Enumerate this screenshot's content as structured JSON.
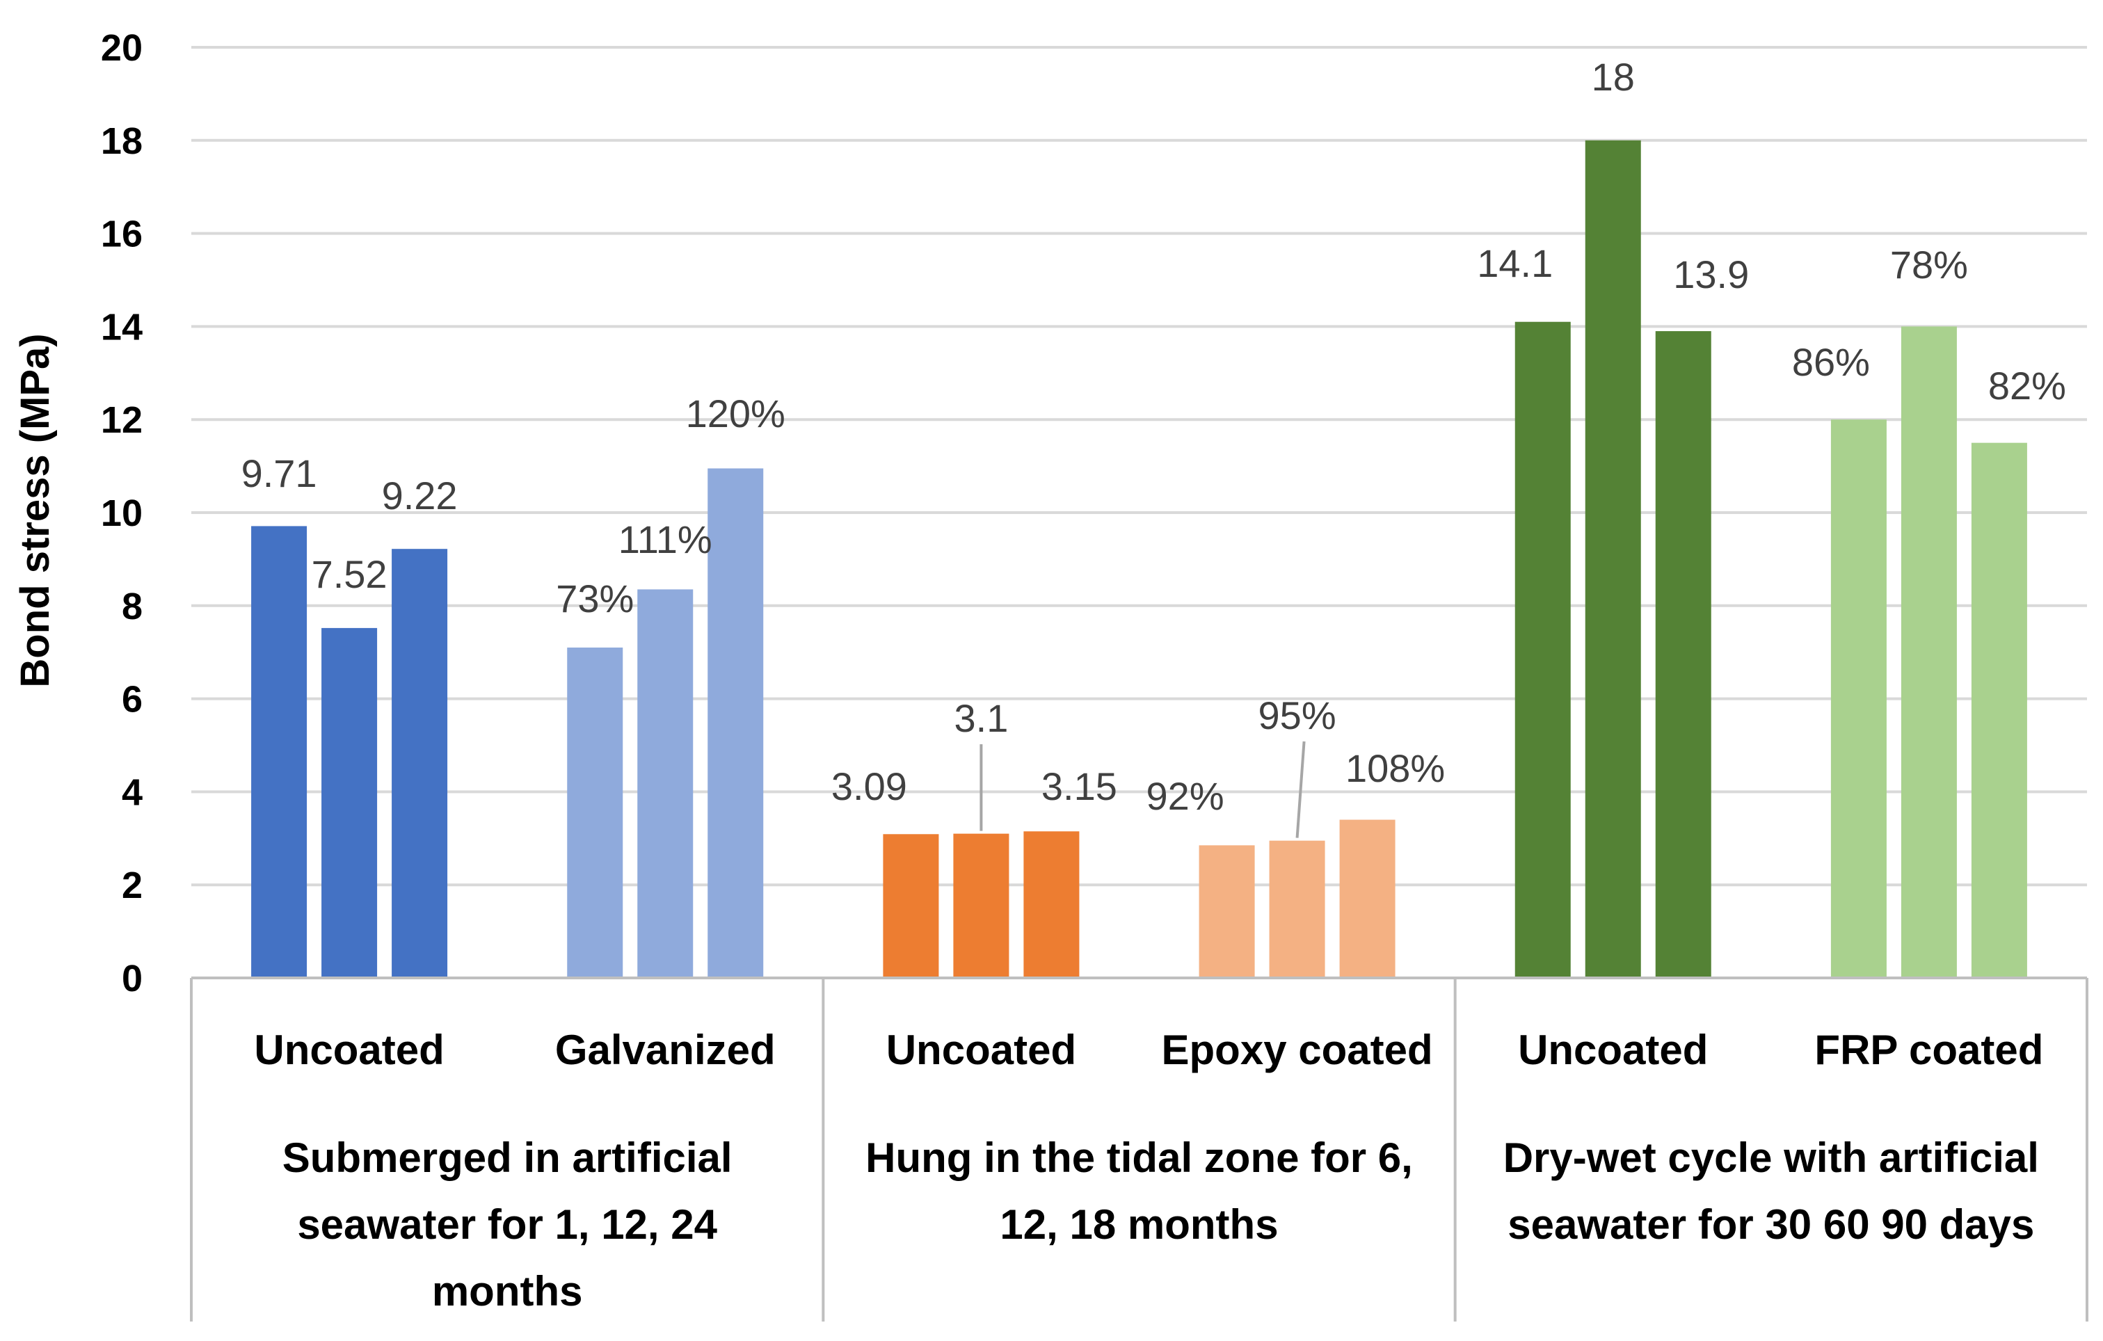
{
  "chart_data": {
    "type": "bar",
    "title": "",
    "xlabel": "",
    "ylabel": "Bond stress (MPa)",
    "ylim": [
      0,
      20
    ],
    "yticks": [
      "0",
      "2",
      "4",
      "6",
      "8",
      "10",
      "12",
      "14",
      "16",
      "18",
      "20"
    ],
    "grid": true,
    "groups": [
      {
        "label": "Submerged in artificial seawater for 1, 12, 24 months",
        "label_lines": [
          "Submerged in artificial",
          "seawater for 1, 12, 24",
          "months"
        ],
        "categories": [
          {
            "label": "Uncoated",
            "color": "#4472C4",
            "values": [
              9.71,
              7.52,
              9.22
            ],
            "data_labels": [
              "9.71",
              "7.52",
              "9.22"
            ]
          },
          {
            "label": "Galvanized",
            "color": "#8FAADC",
            "values": [
              7.1,
              8.35,
              10.95
            ],
            "data_labels": [
              "73%",
              "111%",
              "120%"
            ]
          }
        ]
      },
      {
        "label": "Hung in the tidal zone for 6, 12, 18 months",
        "label_lines": [
          "Hung in the tidal zone for 6,",
          "12, 18 months"
        ],
        "categories": [
          {
            "label": "Uncoated",
            "color": "#ED7D31",
            "values": [
              3.09,
              3.1,
              3.15
            ],
            "data_labels": [
              "3.09",
              "3.1",
              "3.15"
            ]
          },
          {
            "label": "Epoxy coated",
            "color": "#F4B183",
            "values": [
              2.85,
              2.95,
              3.4
            ],
            "data_labels": [
              "92%",
              "95%",
              "108%"
            ]
          }
        ]
      },
      {
        "label": "Dry-wet cycle with artificial seawater for 30 60 90 days",
        "label_lines": [
          "Dry-wet cycle with artificial",
          "seawater for 30 60 90 days"
        ],
        "categories": [
          {
            "label": "Uncoated",
            "color": "#548235",
            "values": [
              14.1,
              18,
              13.9
            ],
            "data_labels": [
              "14.1",
              "18",
              "13.9"
            ]
          },
          {
            "label": "FRP coated",
            "color": "#A9D18E",
            "values": [
              12.0,
              14.0,
              11.5
            ],
            "data_labels": [
              "86%",
              "78%",
              "82%"
            ]
          }
        ]
      }
    ]
  }
}
